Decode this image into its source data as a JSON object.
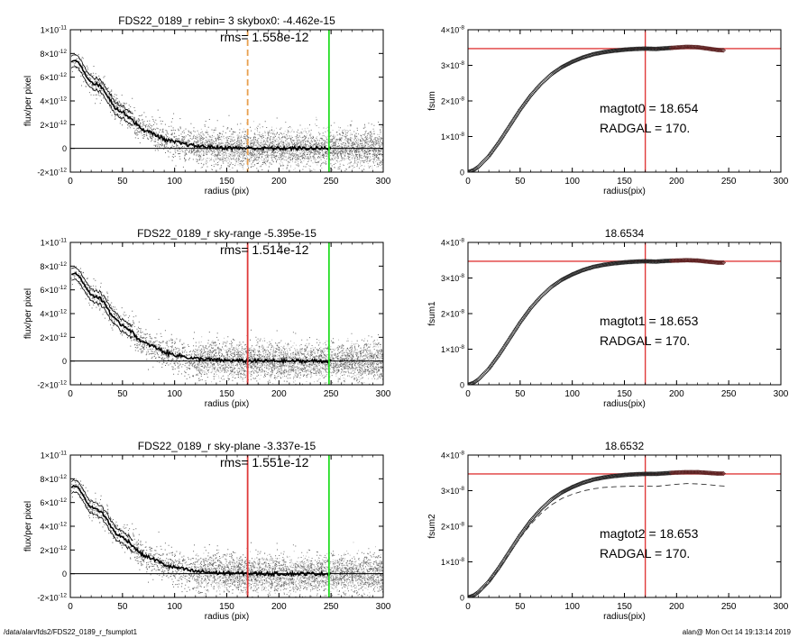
{
  "footer": {
    "path": "/data/alan/fds2/FDS22_0189_r_fsumplot1",
    "stamp": "alan@  Mon Oct 14 19:13:14 2019"
  },
  "colors": {
    "red": "#e03a3a",
    "green": "#22dd22",
    "orange": "#e8a050",
    "points_dark": "#555555",
    "points_light": "#bbbbbb"
  },
  "chart_data": [
    {
      "id": "p1",
      "type": "scatter",
      "title": "FDS22_0189_r rebin= 3    skybox0: -4.462e-15",
      "annotation": "rms= 1.558e-12",
      "xlabel": "radius (pix)",
      "ylabel": "flux/per pixel",
      "xlim": [
        0,
        300
      ],
      "ylim": [
        -2e-12,
        1e-11
      ],
      "xticks": [
        "0",
        "50",
        "100",
        "150",
        "200",
        "250",
        "300"
      ],
      "yticks": [
        {
          "value": 1e-11,
          "base": "1×10",
          "exp": "-11"
        },
        {
          "value": 8e-12,
          "base": "8×10",
          "exp": "-12"
        },
        {
          "value": 6e-12,
          "base": "6×10",
          "exp": "-12"
        },
        {
          "value": 4e-12,
          "base": "4×10",
          "exp": "-12"
        },
        {
          "value": 2e-12,
          "base": "2×10",
          "exp": "-12"
        },
        {
          "value": 0,
          "base": "0",
          "exp": ""
        },
        {
          "value": -2e-12,
          "base": "-2×10",
          "exp": "-12"
        }
      ],
      "vlines": [
        {
          "x": 170,
          "color": "#e8a050",
          "style": "dashed"
        },
        {
          "x": 248,
          "color": "#22dd22",
          "style": "solid"
        }
      ]
    },
    {
      "id": "p2",
      "type": "scatter",
      "title": "FDS22_0189_r sky-range -5.395e-15",
      "annotation": "rms= 1.514e-12",
      "xlabel": "radius (pix)",
      "ylabel": "flux/per pixel",
      "xlim": [
        0,
        300
      ],
      "ylim": [
        -2e-12,
        1e-11
      ],
      "xticks": [
        "0",
        "50",
        "100",
        "150",
        "200",
        "250",
        "300"
      ],
      "yticks": [
        {
          "value": 1e-11,
          "base": "1×10",
          "exp": "-11"
        },
        {
          "value": 8e-12,
          "base": "8×10",
          "exp": "-12"
        },
        {
          "value": 6e-12,
          "base": "6×10",
          "exp": "-12"
        },
        {
          "value": 4e-12,
          "base": "4×10",
          "exp": "-12"
        },
        {
          "value": 2e-12,
          "base": "2×10",
          "exp": "-12"
        },
        {
          "value": 0,
          "base": "0",
          "exp": ""
        },
        {
          "value": -2e-12,
          "base": "-2×10",
          "exp": "-12"
        }
      ],
      "vlines": [
        {
          "x": 170,
          "color": "#e03a3a",
          "style": "solid"
        },
        {
          "x": 248,
          "color": "#22dd22",
          "style": "solid"
        }
      ]
    },
    {
      "id": "p3",
      "type": "scatter",
      "title": "FDS22_0189_r sky-plane -3.337e-15",
      "annotation": "rms= 1.551e-12",
      "xlabel": "radius (pix)",
      "ylabel": "flux/per pixel",
      "xlim": [
        0,
        300
      ],
      "ylim": [
        -2e-12,
        1e-11
      ],
      "xticks": [
        "0",
        "50",
        "100",
        "150",
        "200",
        "250",
        "300"
      ],
      "yticks": [
        {
          "value": 1e-11,
          "base": "1×10",
          "exp": "-11"
        },
        {
          "value": 8e-12,
          "base": "8×10",
          "exp": "-12"
        },
        {
          "value": 6e-12,
          "base": "6×10",
          "exp": "-12"
        },
        {
          "value": 4e-12,
          "base": "4×10",
          "exp": "-12"
        },
        {
          "value": 2e-12,
          "base": "2×10",
          "exp": "-12"
        },
        {
          "value": 0,
          "base": "0",
          "exp": ""
        },
        {
          "value": -2e-12,
          "base": "-2×10",
          "exp": "-12"
        }
      ],
      "vlines": [
        {
          "x": 170,
          "color": "#e03a3a",
          "style": "solid"
        },
        {
          "x": 248,
          "color": "#22dd22",
          "style": "solid"
        }
      ]
    },
    {
      "id": "p4",
      "type": "line",
      "title": "",
      "xlabel": "radius(pix)",
      "ylabel": "fsum",
      "xlim": [
        0,
        300
      ],
      "ylim": [
        0,
        4e-08
      ],
      "xticks": [
        "0",
        "50",
        "100",
        "150",
        "200",
        "250",
        "300"
      ],
      "yticks": [
        {
          "value": 4e-08,
          "base": "4×10",
          "exp": "-8"
        },
        {
          "value": 3e-08,
          "base": "3×10",
          "exp": "-8"
        },
        {
          "value": 2e-08,
          "base": "2×10",
          "exp": "-8"
        },
        {
          "value": 1e-08,
          "base": "1×10",
          "exp": "-8"
        },
        {
          "value": 0,
          "base": "0",
          "exp": ""
        }
      ],
      "annotations": [
        "magtot0 =  18.654",
        "RADGAL =    170."
      ],
      "hline": 3.47e-08,
      "vline": 170,
      "series": [
        {
          "x": [
            0,
            5,
            10,
            20,
            30,
            40,
            50,
            60,
            70,
            80,
            90,
            100,
            110,
            120,
            130,
            140,
            150,
            160,
            170,
            180,
            190,
            200,
            210,
            220,
            230,
            240,
            246
          ],
          "y": [
            0,
            5e-10,
            1.5e-09,
            4.5e-09,
            8.5e-09,
            1.3e-08,
            1.75e-08,
            2.15e-08,
            2.48e-08,
            2.75e-08,
            2.95e-08,
            3.1e-08,
            3.22e-08,
            3.31e-08,
            3.37e-08,
            3.41e-08,
            3.44e-08,
            3.46e-08,
            3.47e-08,
            3.46e-08,
            3.48e-08,
            3.5e-08,
            3.52e-08,
            3.51e-08,
            3.47e-08,
            3.43e-08,
            3.42e-08
          ]
        }
      ]
    },
    {
      "id": "p5",
      "type": "line",
      "title": "18.6534",
      "xlabel": "radius(pix)",
      "ylabel": "fsum1",
      "xlim": [
        0,
        300
      ],
      "ylim": [
        0,
        4e-08
      ],
      "xticks": [
        "0",
        "50",
        "100",
        "150",
        "200",
        "250",
        "300"
      ],
      "yticks": [
        {
          "value": 4e-08,
          "base": "4×10",
          "exp": "-8"
        },
        {
          "value": 3e-08,
          "base": "3×10",
          "exp": "-8"
        },
        {
          "value": 2e-08,
          "base": "2×10",
          "exp": "-8"
        },
        {
          "value": 1e-08,
          "base": "1×10",
          "exp": "-8"
        },
        {
          "value": 0,
          "base": "0",
          "exp": ""
        }
      ],
      "annotations": [
        "magtot1 =  18.653",
        "RADGAL =    170."
      ],
      "hline": 3.47e-08,
      "vline": 170,
      "series": [
        {
          "x": [
            0,
            5,
            10,
            20,
            30,
            40,
            50,
            60,
            70,
            80,
            90,
            100,
            110,
            120,
            130,
            140,
            150,
            160,
            170,
            180,
            190,
            200,
            210,
            220,
            230,
            240,
            246
          ],
          "y": [
            0,
            5e-10,
            1.5e-09,
            4.5e-09,
            8.5e-09,
            1.3e-08,
            1.75e-08,
            2.15e-08,
            2.48e-08,
            2.75e-08,
            2.95e-08,
            3.1e-08,
            3.22e-08,
            3.31e-08,
            3.37e-08,
            3.41e-08,
            3.44e-08,
            3.46e-08,
            3.47e-08,
            3.46e-08,
            3.48e-08,
            3.49e-08,
            3.5e-08,
            3.49e-08,
            3.46e-08,
            3.43e-08,
            3.43e-08
          ]
        }
      ]
    },
    {
      "id": "p6",
      "type": "line",
      "title": "18.6532",
      "xlabel": "radius(pix)",
      "ylabel": "fsum2",
      "xlim": [
        0,
        300
      ],
      "ylim": [
        0,
        4e-08
      ],
      "xticks": [
        "0",
        "50",
        "100",
        "150",
        "200",
        "250",
        "300"
      ],
      "yticks": [
        {
          "value": 4e-08,
          "base": "4×10",
          "exp": "-8"
        },
        {
          "value": 3e-08,
          "base": "3×10",
          "exp": "-8"
        },
        {
          "value": 2e-08,
          "base": "2×10",
          "exp": "-8"
        },
        {
          "value": 1e-08,
          "base": "1×10",
          "exp": "-8"
        },
        {
          "value": 0,
          "base": "0",
          "exp": ""
        }
      ],
      "annotations": [
        "magtot2 =  18.653",
        "RADGAL =    170."
      ],
      "hline": 3.47e-08,
      "vline": 170,
      "series": [
        {
          "x": [
            0,
            5,
            10,
            20,
            30,
            40,
            50,
            60,
            70,
            80,
            90,
            100,
            110,
            120,
            130,
            140,
            150,
            160,
            170,
            180,
            190,
            200,
            210,
            220,
            230,
            240,
            246
          ],
          "y": [
            0,
            5e-10,
            1.5e-09,
            4.5e-09,
            8.5e-09,
            1.3e-08,
            1.75e-08,
            2.15e-08,
            2.48e-08,
            2.75e-08,
            2.95e-08,
            3.1e-08,
            3.22e-08,
            3.31e-08,
            3.37e-08,
            3.41e-08,
            3.44e-08,
            3.46e-08,
            3.47e-08,
            3.47e-08,
            3.49e-08,
            3.51e-08,
            3.52e-08,
            3.52e-08,
            3.5e-08,
            3.48e-08,
            3.48e-08
          ]
        },
        {
          "style": "dashed",
          "x": [
            0,
            10,
            20,
            30,
            40,
            50,
            60,
            70,
            80,
            90,
            100,
            110,
            120,
            130,
            140,
            150,
            160,
            170,
            180,
            190,
            200,
            210,
            220,
            230,
            240,
            246
          ],
          "y": [
            0,
            1.4e-09,
            4.3e-09,
            8.2e-09,
            1.25e-08,
            1.67e-08,
            2.05e-08,
            2.36e-08,
            2.6e-08,
            2.78e-08,
            2.9e-08,
            2.99e-08,
            3.05e-08,
            3.09e-08,
            3.11e-08,
            3.12e-08,
            3.13e-08,
            3.13e-08,
            3.12e-08,
            3.15e-08,
            3.18e-08,
            3.2e-08,
            3.19e-08,
            3.17e-08,
            3.14e-08,
            3.13e-08
          ]
        }
      ]
    }
  ]
}
